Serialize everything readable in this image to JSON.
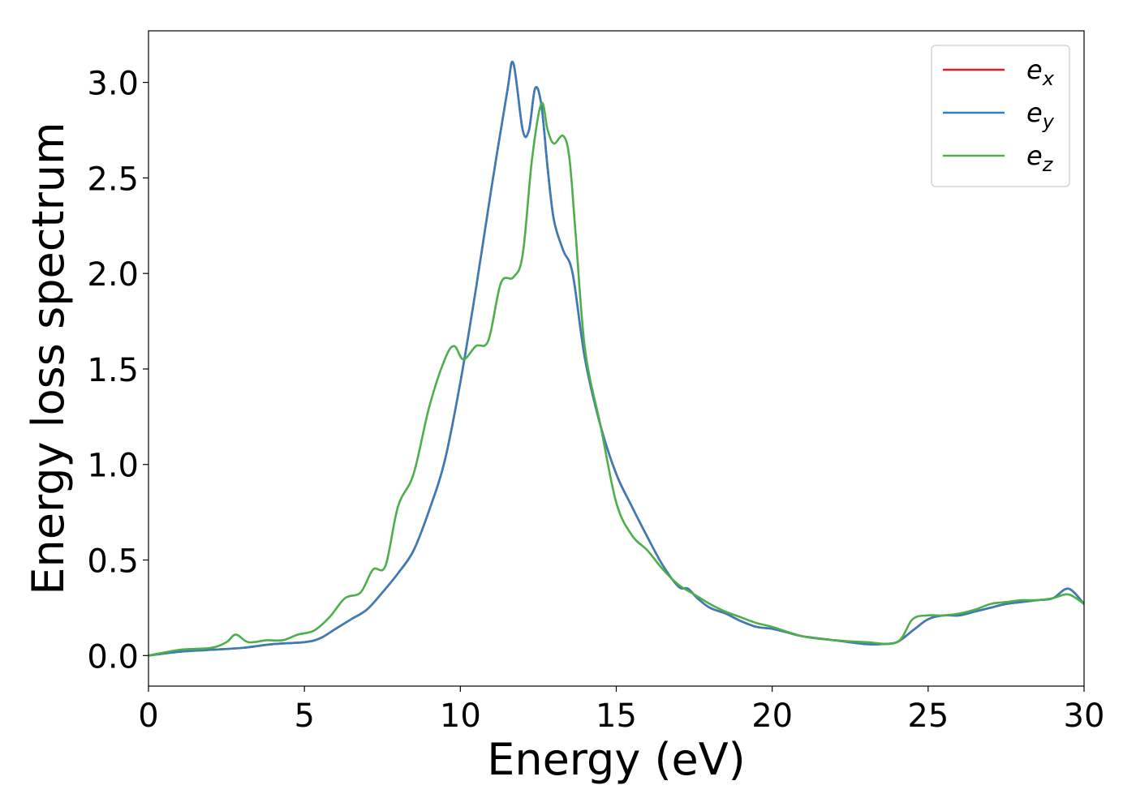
{
  "chart_data": {
    "type": "line",
    "title": "",
    "xlabel": "Energy (eV)",
    "ylabel": "Energy loss spectrum",
    "xlim": [
      0,
      30
    ],
    "ylim": [
      -0.16,
      3.27
    ],
    "xticks": [
      0,
      5,
      10,
      15,
      20,
      25,
      30
    ],
    "xtick_labels": [
      "0",
      "5",
      "10",
      "15",
      "20",
      "25",
      "30"
    ],
    "yticks": [
      0.0,
      0.5,
      1.0,
      1.5,
      2.0,
      2.5,
      3.0
    ],
    "ytick_labels": [
      "0.0",
      "0.5",
      "1.0",
      "1.5",
      "2.0",
      "2.5",
      "3.0"
    ],
    "grid": false,
    "legend_position": "top-right",
    "series": [
      {
        "name": "e_x",
        "legend_base": "e",
        "legend_sub": "x",
        "color": "#e41a1c",
        "x": [
          0,
          1,
          2,
          3,
          4,
          5,
          5.5,
          6,
          6.5,
          7,
          7.5,
          8,
          8.5,
          9,
          9.5,
          10,
          10.5,
          11,
          11.5,
          11.7,
          12,
          12.2,
          12.4,
          12.6,
          12.8,
          13,
          13.3,
          13.6,
          14,
          14.5,
          15,
          15.5,
          16,
          16.5,
          17,
          17.3,
          17.6,
          18,
          18.5,
          19,
          19.5,
          20,
          20.5,
          21,
          22,
          23,
          23.5,
          24,
          24.5,
          25,
          25.5,
          26,
          26.5,
          27,
          27.5,
          28,
          28.5,
          29,
          29.5,
          30
        ],
        "y": [
          0,
          0.02,
          0.03,
          0.04,
          0.06,
          0.07,
          0.09,
          0.14,
          0.19,
          0.24,
          0.33,
          0.43,
          0.55,
          0.76,
          1.02,
          1.43,
          1.92,
          2.45,
          2.95,
          3.1,
          2.75,
          2.75,
          2.97,
          2.88,
          2.55,
          2.28,
          2.12,
          2.0,
          1.55,
          1.2,
          0.95,
          0.78,
          0.62,
          0.47,
          0.36,
          0.35,
          0.3,
          0.25,
          0.22,
          0.18,
          0.15,
          0.14,
          0.12,
          0.1,
          0.08,
          0.06,
          0.06,
          0.07,
          0.13,
          0.19,
          0.21,
          0.21,
          0.23,
          0.25,
          0.27,
          0.28,
          0.29,
          0.3,
          0.35,
          0.27
        ]
      },
      {
        "name": "e_y",
        "legend_base": "e",
        "legend_sub": "y",
        "color": "#377eb8",
        "x": [
          0,
          1,
          2,
          3,
          4,
          5,
          5.5,
          6,
          6.5,
          7,
          7.5,
          8,
          8.5,
          9,
          9.5,
          10,
          10.5,
          11,
          11.5,
          11.7,
          12,
          12.2,
          12.4,
          12.6,
          12.8,
          13,
          13.3,
          13.6,
          14,
          14.5,
          15,
          15.5,
          16,
          16.5,
          17,
          17.3,
          17.6,
          18,
          18.5,
          19,
          19.5,
          20,
          20.5,
          21,
          22,
          23,
          23.5,
          24,
          24.5,
          25,
          25.5,
          26,
          26.5,
          27,
          27.5,
          28,
          28.5,
          29,
          29.5,
          30
        ],
        "y": [
          0,
          0.02,
          0.03,
          0.04,
          0.06,
          0.07,
          0.09,
          0.14,
          0.19,
          0.24,
          0.33,
          0.43,
          0.55,
          0.76,
          1.02,
          1.43,
          1.92,
          2.45,
          2.95,
          3.1,
          2.75,
          2.75,
          2.97,
          2.88,
          2.55,
          2.28,
          2.12,
          2.0,
          1.55,
          1.2,
          0.95,
          0.78,
          0.62,
          0.47,
          0.36,
          0.35,
          0.3,
          0.25,
          0.22,
          0.18,
          0.15,
          0.14,
          0.12,
          0.1,
          0.08,
          0.06,
          0.06,
          0.07,
          0.13,
          0.19,
          0.21,
          0.21,
          0.23,
          0.25,
          0.27,
          0.28,
          0.29,
          0.3,
          0.35,
          0.27
        ]
      },
      {
        "name": "e_z",
        "legend_base": "e",
        "legend_sub": "z",
        "color": "#4daf4a",
        "x": [
          0,
          1,
          2,
          2.5,
          2.8,
          3.2,
          3.8,
          4.3,
          4.8,
          5.3,
          5.8,
          6.3,
          6.8,
          7.2,
          7.6,
          8,
          8.5,
          9,
          9.5,
          9.8,
          10.1,
          10.5,
          10.9,
          11.3,
          11.7,
          12,
          12.3,
          12.6,
          12.8,
          13,
          13.3,
          13.5,
          13.7,
          14,
          14.5,
          15,
          15.5,
          16,
          16.5,
          17,
          17.5,
          18,
          18.5,
          19,
          19.5,
          20,
          21,
          22,
          23,
          24,
          24.5,
          25,
          25.5,
          26,
          26.5,
          27,
          27.5,
          28,
          28.5,
          29,
          29.5,
          30
        ],
        "y": [
          0,
          0.03,
          0.04,
          0.07,
          0.11,
          0.07,
          0.08,
          0.08,
          0.11,
          0.13,
          0.2,
          0.3,
          0.33,
          0.45,
          0.47,
          0.78,
          0.95,
          1.3,
          1.55,
          1.62,
          1.55,
          1.62,
          1.65,
          1.95,
          1.98,
          2.1,
          2.6,
          2.89,
          2.75,
          2.68,
          2.72,
          2.6,
          2.2,
          1.6,
          1.2,
          0.8,
          0.63,
          0.55,
          0.45,
          0.37,
          0.32,
          0.27,
          0.23,
          0.2,
          0.17,
          0.15,
          0.1,
          0.08,
          0.07,
          0.07,
          0.19,
          0.21,
          0.21,
          0.22,
          0.24,
          0.27,
          0.28,
          0.29,
          0.29,
          0.3,
          0.32,
          0.27
        ]
      }
    ]
  }
}
